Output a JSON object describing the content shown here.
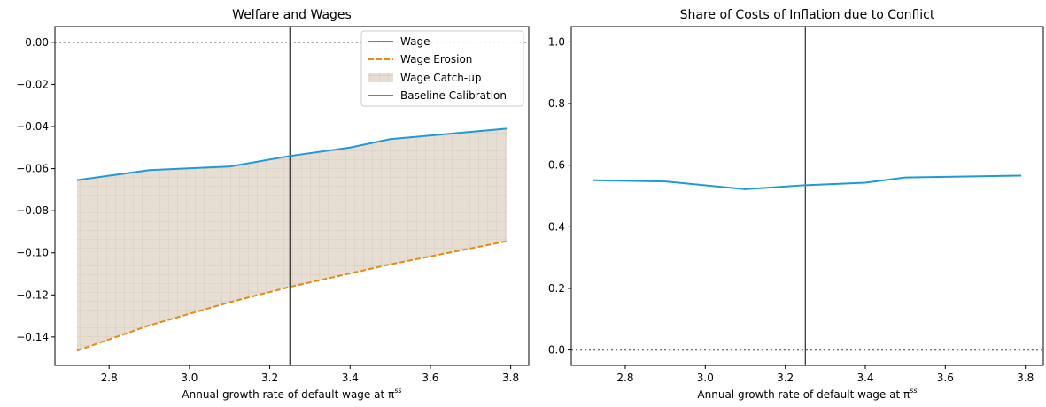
{
  "chart_data": [
    {
      "type": "line",
      "title": "Welfare and Wages",
      "xlabel": "Annual growth rate of default wage at π",
      "xlabel_sup": "ss",
      "ylabel": "",
      "xlim": [
        2.665,
        3.845
      ],
      "ylim": [
        -0.1535,
        0.0075
      ],
      "xticks": [
        2.8,
        3.0,
        3.2,
        3.4,
        3.6,
        3.8
      ],
      "xtick_labels": [
        "2.8",
        "3.0",
        "3.2",
        "3.4",
        "3.6",
        "3.8"
      ],
      "yticks": [
        0.0,
        -0.02,
        -0.04,
        -0.06,
        -0.08,
        -0.1,
        -0.12,
        -0.14
      ],
      "ytick_labels": [
        "0.00",
        "−0.02",
        "−0.04",
        "−0.06",
        "−0.08",
        "−0.10",
        "−0.12",
        "−0.14"
      ],
      "x": [
        2.72,
        2.9,
        3.1,
        3.25,
        3.4,
        3.5,
        3.79
      ],
      "series": [
        {
          "name": "Wage",
          "style": "solid",
          "color": "#1f9ad6",
          "values": [
            -0.0655,
            -0.0607,
            -0.059,
            -0.054,
            -0.05,
            -0.046,
            -0.041
          ]
        },
        {
          "name": "Wage Erosion",
          "style": "dashed",
          "color": "#e88a0f",
          "values": [
            -0.1465,
            -0.1345,
            -0.1235,
            -0.1162,
            -0.1098,
            -0.1055,
            -0.0945
          ]
        }
      ],
      "fill": {
        "name": "Wage Catch-up",
        "between": [
          "Wage",
          "Wage Erosion"
        ],
        "color": "#e6ddd3",
        "hatch": "grid"
      },
      "hlines": [
        {
          "y": 0.0,
          "style": "dotted",
          "color": "#777777"
        }
      ],
      "vlines": [
        {
          "x": 3.25,
          "name": "Baseline Calibration",
          "color": "#000000"
        }
      ],
      "legend": {
        "placement": "upper-right",
        "entries": [
          "Wage",
          "Wage Erosion",
          "Wage Catch-up",
          "Baseline Calibration"
        ]
      }
    },
    {
      "type": "line",
      "title": "Share of Costs of Inflation due to Conflict",
      "xlabel": "Annual growth rate of default wage at π",
      "xlabel_sup": "ss",
      "ylabel": "",
      "xlim": [
        2.665,
        3.845
      ],
      "ylim": [
        -0.05,
        1.05
      ],
      "xticks": [
        2.8,
        3.0,
        3.2,
        3.4,
        3.6,
        3.8
      ],
      "xtick_labels": [
        "2.8",
        "3.0",
        "3.2",
        "3.4",
        "3.6",
        "3.8"
      ],
      "yticks": [
        0.0,
        0.2,
        0.4,
        0.6,
        0.8,
        1.0
      ],
      "ytick_labels": [
        "0.0",
        "0.2",
        "0.4",
        "0.6",
        "0.8",
        "1.0"
      ],
      "x": [
        2.72,
        2.9,
        3.1,
        3.25,
        3.4,
        3.5,
        3.79
      ],
      "series": [
        {
          "style": "solid",
          "color": "#1f9ad6",
          "values": [
            0.551,
            0.547,
            0.522,
            0.535,
            0.543,
            0.56,
            0.566
          ]
        }
      ],
      "hlines": [
        {
          "y": 0.0,
          "style": "dotted",
          "color": "#777777"
        }
      ],
      "vlines": [
        {
          "x": 3.25,
          "color": "#000000"
        }
      ]
    }
  ]
}
